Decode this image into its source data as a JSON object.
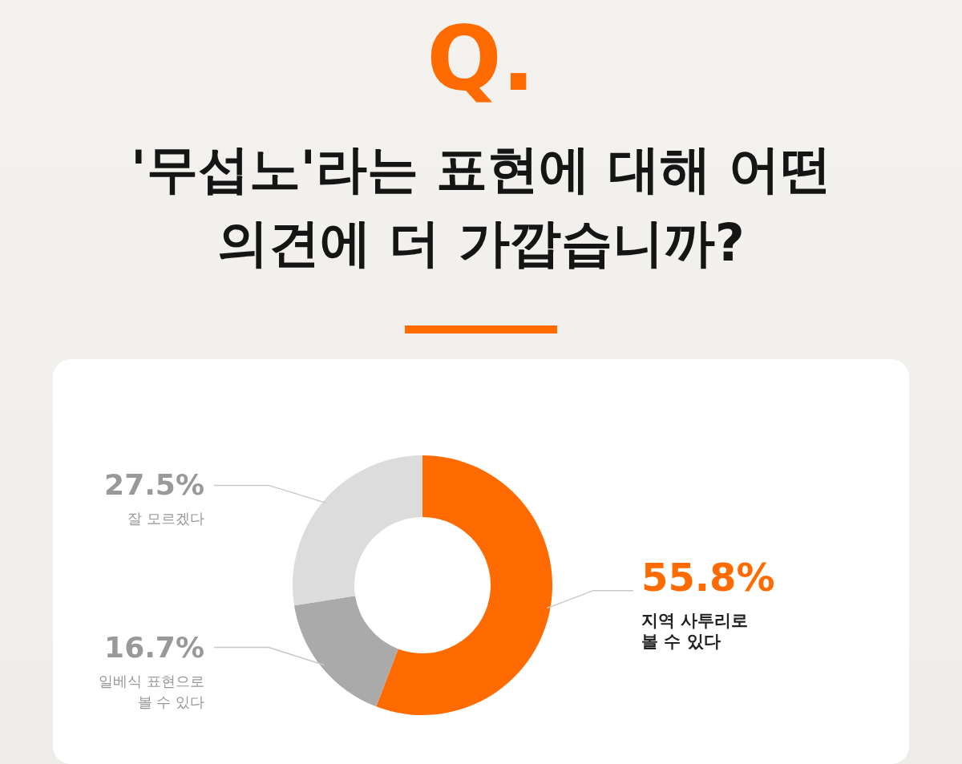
{
  "chart_data": {
    "type": "donut",
    "title": "'무섭노'라는 표현에 대해 어떤 의견에 더 가깝습니까?",
    "annotations": [
      "Q."
    ],
    "categories": [
      "지역 사투리로\n볼 수 있다",
      "일베식 표현으로\n볼 수 있다",
      "잘 모르겠다"
    ],
    "values": [
      55.8,
      16.7,
      27.5
    ],
    "colors": [
      "#ff6b00",
      "#aaaaaa",
      "#dcdcdc"
    ],
    "value_labels": [
      "55.8%",
      "16.7%",
      "27.5%"
    ]
  }
}
